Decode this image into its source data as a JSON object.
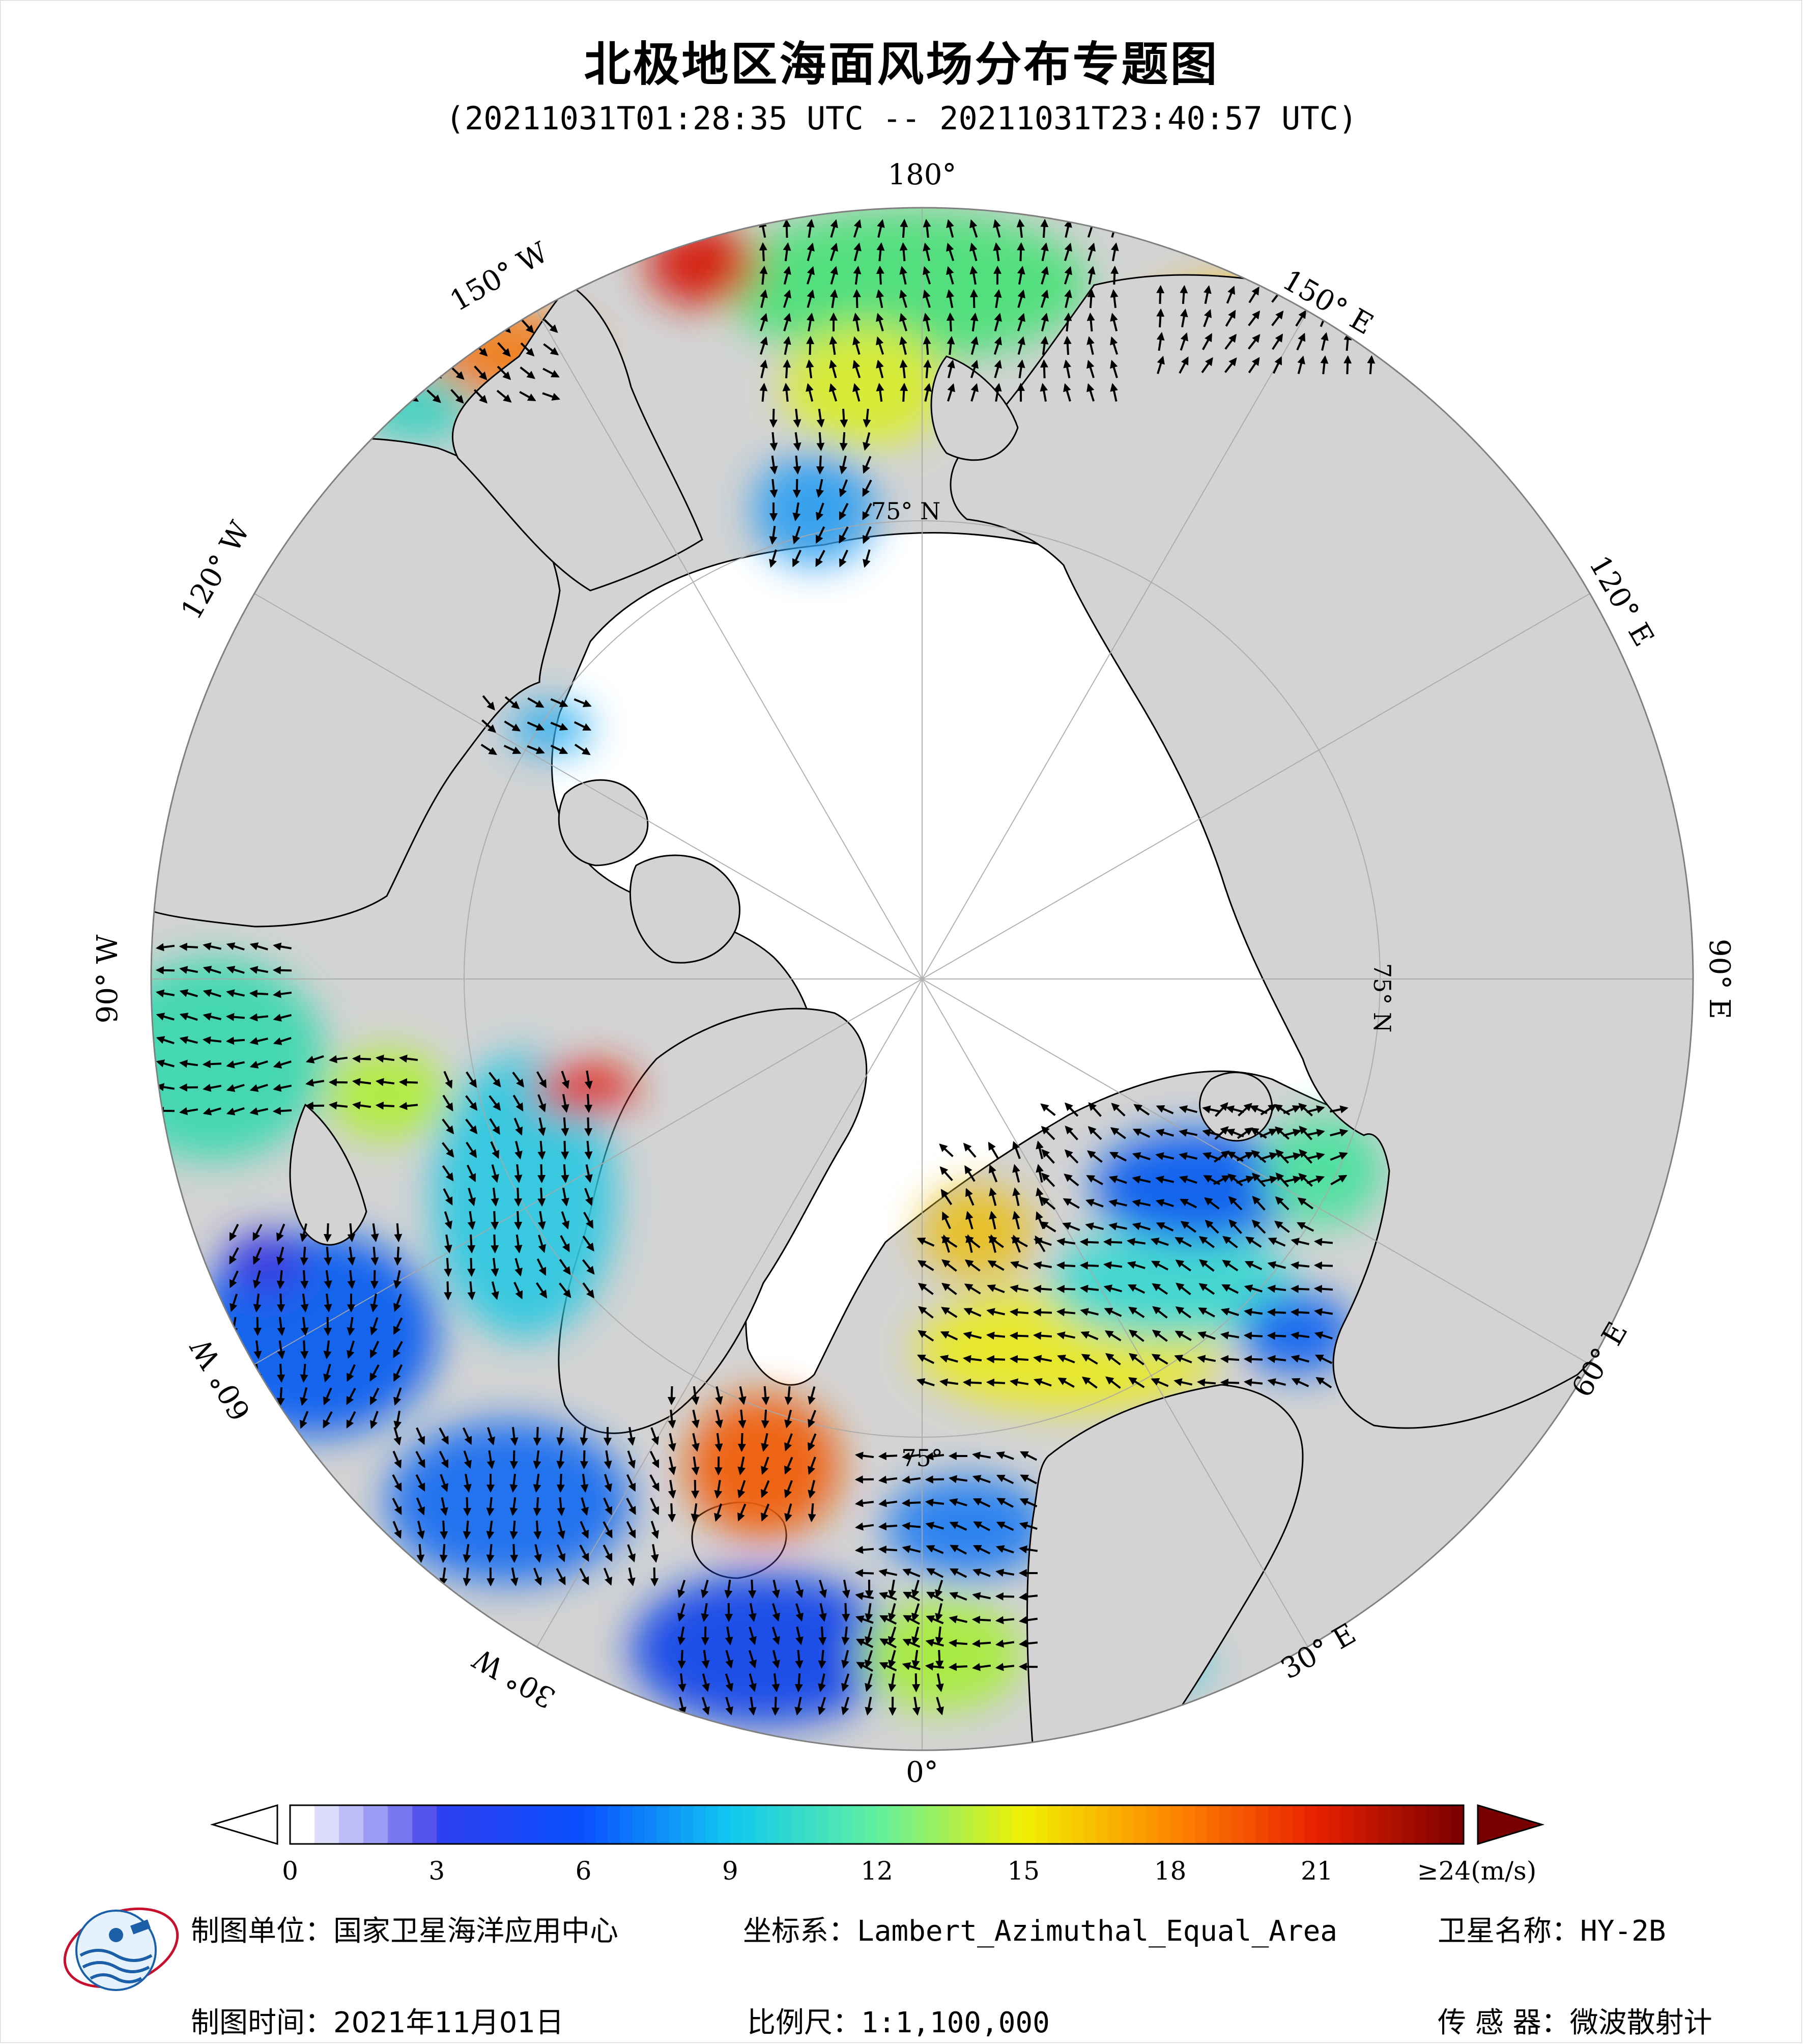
{
  "title": "北极地区海面风场分布专题图",
  "subtitle": "(20211031T01:28:35 UTC -- 20211031T23:40:57 UTC)",
  "map": {
    "projection": "Lambert_Azimuthal_Equal_Area",
    "center": "North Pole",
    "longitude_labels": [
      "180°",
      "150° E",
      "120° E",
      "90° E",
      "60° E",
      "30° E",
      "0°",
      "30° W",
      "60° W",
      "90° W",
      "120° W",
      "150° W"
    ],
    "latitude_labels": [
      "75° N",
      "75° N",
      "75°"
    ],
    "colors": {
      "land": "#d3d3d3",
      "sea_ice": "#ffffff",
      "coastline": "#000000",
      "wind_arrow": "#000000"
    }
  },
  "colorbar": {
    "unit_label": "≥24(m/s)",
    "ticks": [
      "0",
      "3",
      "6",
      "9",
      "12",
      "15",
      "18",
      "21"
    ],
    "tick_values": [
      0,
      3,
      6,
      9,
      12,
      15,
      18,
      21,
      24
    ],
    "range": [
      0,
      24
    ],
    "stops": [
      {
        "value": 0,
        "color": "#ffffff"
      },
      {
        "value": 3,
        "color": "#3040f0"
      },
      {
        "value": 6,
        "color": "#0a50ff"
      },
      {
        "value": 9,
        "color": "#10c8f0"
      },
      {
        "value": 12,
        "color": "#60f0a0"
      },
      {
        "value": 15,
        "color": "#f0f000"
      },
      {
        "value": 18,
        "color": "#ff8800"
      },
      {
        "value": 21,
        "color": "#e82000"
      },
      {
        "value": 24,
        "color": "#780000"
      }
    ],
    "low_stops": [
      "#ffffff",
      "#dcdcfc",
      "#bcbcf8",
      "#9c9cf4",
      "#7878f0",
      "#5454ec"
    ],
    "extend_high_color": "#780000"
  },
  "footer": {
    "unit_label": "制图单位：",
    "unit_value": "国家卫星海洋应用中心",
    "crs_label": "坐标系：",
    "crs_value": "Lambert_Azimuthal_Equal_Area",
    "satellite_label": "卫星名称：",
    "satellite_value": "HY-2B",
    "date_label": "制图时间：",
    "date_value": "2021年11月01日",
    "scale_label": "比例尺：",
    "scale_value": "1:1,100,000",
    "sensor_label": "传 感 器：",
    "sensor_value": "微波散射计"
  }
}
